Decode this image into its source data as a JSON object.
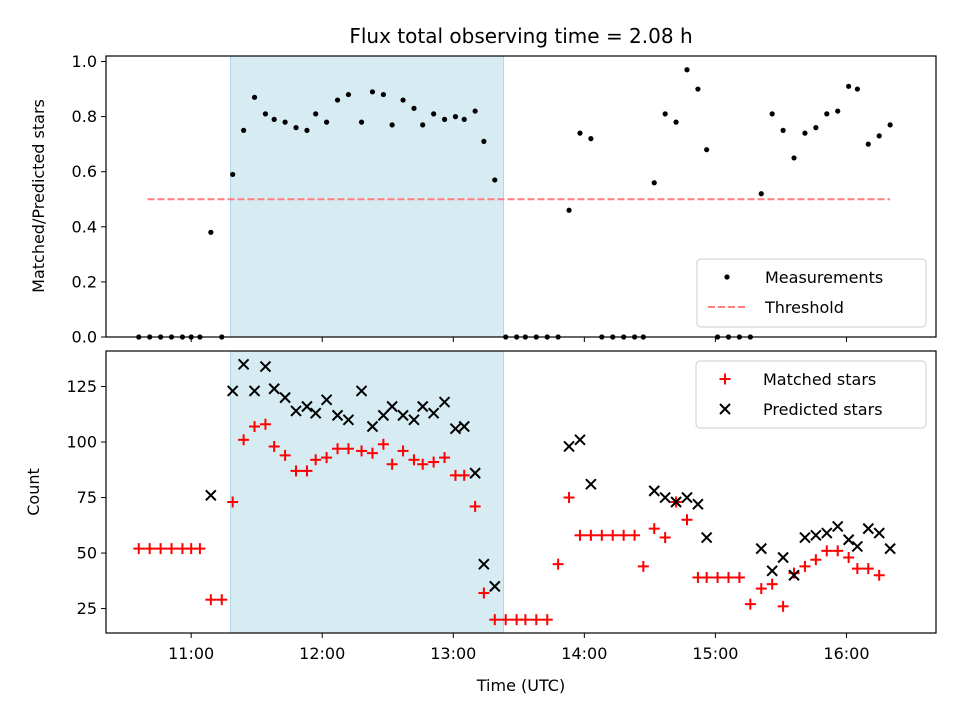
{
  "chart_data": [
    {
      "type": "scatter",
      "title": "Flux total observing time = 2.08 h",
      "ylabel": "Matched/Predicted stars",
      "xlim": [
        "10:21",
        "16:41"
      ],
      "ylim": [
        0,
        1.02
      ],
      "y_ticks": [
        "0.0",
        "0.2",
        "0.4",
        "0.6",
        "0.8",
        "1.0"
      ],
      "highlight_span": [
        "11:18",
        "13:23"
      ],
      "highlight_color": "#add8e6",
      "legend_position": "lower right",
      "series": [
        {
          "name": "Measurements",
          "color": "#000000",
          "marker": "dot",
          "points": [
            [
              "10:36",
              0.0
            ],
            [
              "10:41",
              0.0
            ],
            [
              "10:46",
              0.0
            ],
            [
              "10:51",
              0.0
            ],
            [
              "10:56",
              0.0
            ],
            [
              "11:00",
              0.0
            ],
            [
              "11:04",
              0.0
            ],
            [
              "11:09",
              0.38
            ],
            [
              "11:14",
              0.0
            ],
            [
              "11:19",
              0.59
            ],
            [
              "11:24",
              0.75
            ],
            [
              "11:29",
              0.87
            ],
            [
              "11:34",
              0.81
            ],
            [
              "11:38",
              0.79
            ],
            [
              "11:43",
              0.78
            ],
            [
              "11:48",
              0.76
            ],
            [
              "11:53",
              0.75
            ],
            [
              "11:57",
              0.81
            ],
            [
              "12:02",
              0.78
            ],
            [
              "12:07",
              0.86
            ],
            [
              "12:12",
              0.88
            ],
            [
              "12:18",
              0.78
            ],
            [
              "12:23",
              0.89
            ],
            [
              "12:28",
              0.88
            ],
            [
              "12:32",
              0.77
            ],
            [
              "12:37",
              0.86
            ],
            [
              "12:42",
              0.83
            ],
            [
              "12:46",
              0.77
            ],
            [
              "12:51",
              0.81
            ],
            [
              "12:56",
              0.79
            ],
            [
              "13:01",
              0.8
            ],
            [
              "13:05",
              0.79
            ],
            [
              "13:10",
              0.82
            ],
            [
              "13:14",
              0.71
            ],
            [
              "13:19",
              0.57
            ],
            [
              "13:24",
              0.0
            ],
            [
              "13:29",
              0.0
            ],
            [
              "13:33",
              0.0
            ],
            [
              "13:38",
              0.0
            ],
            [
              "13:43",
              0.0
            ],
            [
              "13:48",
              0.0
            ],
            [
              "13:53",
              0.46
            ],
            [
              "13:58",
              0.74
            ],
            [
              "14:03",
              0.72
            ],
            [
              "14:08",
              0.0
            ],
            [
              "14:13",
              0.0
            ],
            [
              "14:18",
              0.0
            ],
            [
              "14:23",
              0.0
            ],
            [
              "14:27",
              0.0
            ],
            [
              "14:32",
              0.56
            ],
            [
              "14:37",
              0.81
            ],
            [
              "14:42",
              0.78
            ],
            [
              "14:47",
              0.97
            ],
            [
              "14:52",
              0.9
            ],
            [
              "14:56",
              0.68
            ],
            [
              "15:01",
              0.0
            ],
            [
              "15:06",
              0.0
            ],
            [
              "15:11",
              0.0
            ],
            [
              "15:16",
              0.0
            ],
            [
              "15:21",
              0.52
            ],
            [
              "15:26",
              0.81
            ],
            [
              "15:31",
              0.75
            ],
            [
              "15:36",
              0.65
            ],
            [
              "15:41",
              0.74
            ],
            [
              "15:46",
              0.76
            ],
            [
              "15:51",
              0.81
            ],
            [
              "15:56",
              0.82
            ],
            [
              "16:01",
              0.91
            ],
            [
              "16:05",
              0.9
            ],
            [
              "16:10",
              0.7
            ],
            [
              "16:15",
              0.73
            ],
            [
              "16:20",
              0.77
            ]
          ]
        },
        {
          "name": "Threshold",
          "color": "#ff7f7f",
          "style": "dashed",
          "points": [
            [
              "10:40",
              0.5
            ],
            [
              "16:20",
              0.5
            ]
          ]
        }
      ]
    },
    {
      "type": "scatter",
      "xlabel": "Time (UTC)",
      "ylabel": "Count",
      "xlim": [
        "10:21",
        "16:41"
      ],
      "ylim": [
        14,
        141
      ],
      "x_ticks": [
        "11:00",
        "12:00",
        "13:00",
        "14:00",
        "15:00",
        "16:00"
      ],
      "y_ticks": [
        "25",
        "50",
        "75",
        "100",
        "125"
      ],
      "highlight_span": [
        "11:18",
        "13:23"
      ],
      "highlight_color": "#add8e6",
      "legend_position": "upper right",
      "series": [
        {
          "name": "Matched stars",
          "color": "#ff0000",
          "marker": "plus",
          "points": [
            [
              "10:36",
              52
            ],
            [
              "10:41",
              52
            ],
            [
              "10:46",
              52
            ],
            [
              "10:51",
              52
            ],
            [
              "10:56",
              52
            ],
            [
              "11:00",
              52
            ],
            [
              "11:04",
              52
            ],
            [
              "11:09",
              29
            ],
            [
              "11:14",
              29
            ],
            [
              "11:19",
              73
            ],
            [
              "11:24",
              101
            ],
            [
              "11:29",
              107
            ],
            [
              "11:34",
              108
            ],
            [
              "11:38",
              98
            ],
            [
              "11:43",
              94
            ],
            [
              "11:48",
              87
            ],
            [
              "11:53",
              87
            ],
            [
              "11:57",
              92
            ],
            [
              "12:02",
              93
            ],
            [
              "12:07",
              97
            ],
            [
              "12:12",
              97
            ],
            [
              "12:18",
              96
            ],
            [
              "12:23",
              95
            ],
            [
              "12:28",
              99
            ],
            [
              "12:32",
              90
            ],
            [
              "12:37",
              96
            ],
            [
              "12:42",
              92
            ],
            [
              "12:46",
              90
            ],
            [
              "12:51",
              91
            ],
            [
              "12:56",
              93
            ],
            [
              "13:01",
              85
            ],
            [
              "13:05",
              85
            ],
            [
              "13:10",
              71
            ],
            [
              "13:14",
              32
            ],
            [
              "13:19",
              20
            ],
            [
              "13:24",
              20
            ],
            [
              "13:29",
              20
            ],
            [
              "13:33",
              20
            ],
            [
              "13:38",
              20
            ],
            [
              "13:43",
              20
            ],
            [
              "13:48",
              45
            ],
            [
              "13:53",
              75
            ],
            [
              "13:58",
              58
            ],
            [
              "14:03",
              58
            ],
            [
              "14:08",
              58
            ],
            [
              "14:13",
              58
            ],
            [
              "14:18",
              58
            ],
            [
              "14:23",
              58
            ],
            [
              "14:27",
              44
            ],
            [
              "14:32",
              61
            ],
            [
              "14:37",
              57
            ],
            [
              "14:42",
              73
            ],
            [
              "14:47",
              65
            ],
            [
              "14:52",
              39
            ],
            [
              "14:56",
              39
            ],
            [
              "15:01",
              39
            ],
            [
              "15:06",
              39
            ],
            [
              "15:11",
              39
            ],
            [
              "15:16",
              27
            ],
            [
              "15:21",
              34
            ],
            [
              "15:26",
              36
            ],
            [
              "15:31",
              26
            ],
            [
              "15:36",
              41
            ],
            [
              "15:41",
              44
            ],
            [
              "15:46",
              47
            ],
            [
              "15:51",
              51
            ],
            [
              "15:56",
              51
            ],
            [
              "16:01",
              48
            ],
            [
              "16:05",
              43
            ],
            [
              "16:10",
              43
            ],
            [
              "16:15",
              40
            ]
          ]
        },
        {
          "name": "Predicted stars",
          "color": "#000000",
          "marker": "x",
          "points": [
            [
              "11:09",
              76
            ],
            [
              "11:19",
              123
            ],
            [
              "11:24",
              135
            ],
            [
              "11:29",
              123
            ],
            [
              "11:34",
              134
            ],
            [
              "11:38",
              124
            ],
            [
              "11:43",
              120
            ],
            [
              "11:48",
              114
            ],
            [
              "11:53",
              116
            ],
            [
              "11:57",
              113
            ],
            [
              "12:02",
              119
            ],
            [
              "12:07",
              112
            ],
            [
              "12:12",
              110
            ],
            [
              "12:18",
              123
            ],
            [
              "12:23",
              107
            ],
            [
              "12:28",
              112
            ],
            [
              "12:32",
              116
            ],
            [
              "12:37",
              112
            ],
            [
              "12:42",
              110
            ],
            [
              "12:46",
              116
            ],
            [
              "12:51",
              113
            ],
            [
              "12:56",
              118
            ],
            [
              "13:01",
              106
            ],
            [
              "13:05",
              107
            ],
            [
              "13:10",
              86
            ],
            [
              "13:14",
              45
            ],
            [
              "13:19",
              35
            ],
            [
              "13:53",
              98
            ],
            [
              "13:58",
              101
            ],
            [
              "14:03",
              81
            ],
            [
              "14:32",
              78
            ],
            [
              "14:37",
              75
            ],
            [
              "14:42",
              73
            ],
            [
              "14:47",
              75
            ],
            [
              "14:52",
              72
            ],
            [
              "14:56",
              57
            ],
            [
              "15:21",
              52
            ],
            [
              "15:26",
              42
            ],
            [
              "15:31",
              48
            ],
            [
              "15:36",
              40
            ],
            [
              "15:41",
              57
            ],
            [
              "15:46",
              58
            ],
            [
              "15:51",
              59
            ],
            [
              "15:56",
              62
            ],
            [
              "16:01",
              56
            ],
            [
              "16:05",
              53
            ],
            [
              "16:10",
              61
            ],
            [
              "16:15",
              59
            ],
            [
              "16:20",
              52
            ]
          ]
        }
      ]
    }
  ]
}
